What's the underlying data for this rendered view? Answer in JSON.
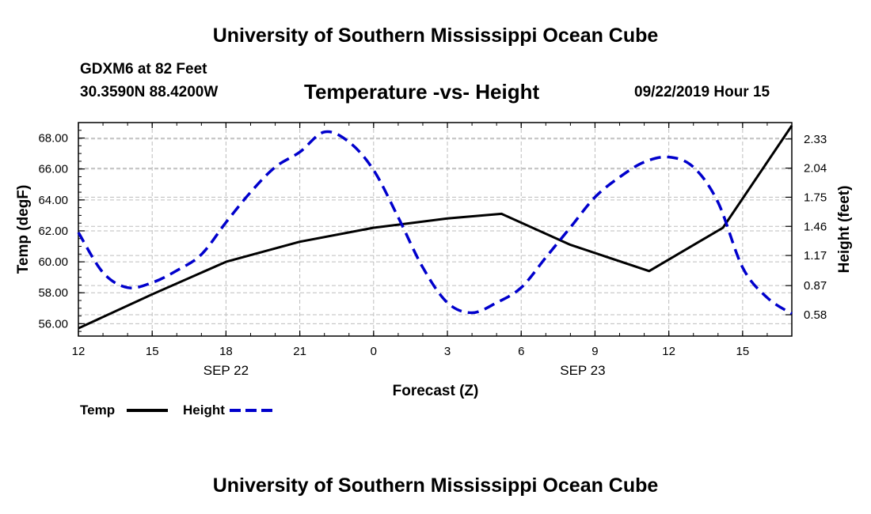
{
  "page": {
    "header_title": "University of Southern Mississippi Ocean Cube",
    "footer_title": "University of Southern Mississippi Ocean Cube",
    "station": "GDXM6 at 82 Feet",
    "coordinates": "30.3590N 88.4200W",
    "datetime": "09/22/2019 Hour 15"
  },
  "legend": {
    "temp_label": "Temp",
    "height_label": "Height"
  },
  "chart_data": {
    "type": "line",
    "title": "Temperature -vs- Height",
    "xlabel": "Forecast (Z)",
    "ylabel": "Temp (degF)",
    "y2label": "Height (feet)",
    "grid": true,
    "xlim": [
      0,
      29
    ],
    "ylim": [
      55.2,
      69.0
    ],
    "y2lim": [
      0.3675,
      2.4935
    ],
    "x_ticks": [
      {
        "x": 0,
        "label": "12"
      },
      {
        "x": 3,
        "label": "15"
      },
      {
        "x": 6,
        "label": "18"
      },
      {
        "x": 9,
        "label": "21"
      },
      {
        "x": 12,
        "label": "0"
      },
      {
        "x": 15,
        "label": "3"
      },
      {
        "x": 18,
        "label": "6"
      },
      {
        "x": 21,
        "label": "9"
      },
      {
        "x": 24,
        "label": "12"
      },
      {
        "x": 27,
        "label": "15"
      }
    ],
    "date_labels": [
      {
        "x": 6,
        "label": "SEP 22"
      },
      {
        "x": 20.5,
        "label": "SEP 23"
      }
    ],
    "y_ticks": [
      "56.00",
      "58.00",
      "60.00",
      "62.00",
      "64.00",
      "66.00",
      "68.00"
    ],
    "y2_ticks": [
      "0.58",
      "0.87",
      "1.17",
      "1.46",
      "1.75",
      "2.04",
      "2.33"
    ],
    "series": [
      {
        "name": "Temp",
        "axis": "left",
        "color": "#000000",
        "style": "solid",
        "x": [
          0,
          3,
          6,
          9,
          12,
          15,
          17.2,
          20,
          23.2,
          26.2,
          29
        ],
        "values": [
          55.7,
          57.9,
          60.0,
          61.3,
          62.2,
          62.8,
          63.1,
          61.1,
          59.4,
          62.2,
          68.8
        ]
      },
      {
        "name": "Height",
        "axis": "right",
        "color": "#0000cc",
        "style": "dashed",
        "x": [
          0,
          1,
          2,
          3,
          4,
          5,
          6,
          7,
          8,
          9,
          10,
          11,
          12,
          13,
          14,
          15,
          16,
          17,
          18,
          19,
          20,
          21,
          22,
          23,
          24,
          25,
          26,
          27,
          28,
          29
        ],
        "values": [
          1.4,
          1.0,
          0.85,
          0.9,
          1.02,
          1.18,
          1.5,
          1.8,
          2.05,
          2.2,
          2.4,
          2.3,
          2.02,
          1.55,
          1.05,
          0.7,
          0.6,
          0.7,
          0.85,
          1.15,
          1.45,
          1.75,
          1.95,
          2.1,
          2.15,
          2.05,
          1.7,
          1.05,
          0.75,
          0.59
        ]
      }
    ]
  }
}
